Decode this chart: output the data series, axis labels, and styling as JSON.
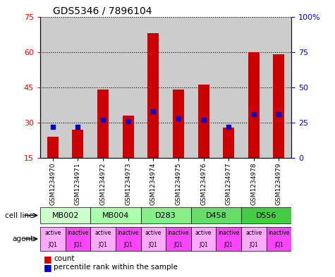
{
  "title": "GDS5346 / 7896104",
  "samples": [
    "GSM1234970",
    "GSM1234971",
    "GSM1234972",
    "GSM1234973",
    "GSM1234974",
    "GSM1234975",
    "GSM1234976",
    "GSM1234977",
    "GSM1234978",
    "GSM1234979"
  ],
  "counts": [
    24,
    27,
    44,
    33,
    68,
    44,
    46,
    28,
    60,
    59
  ],
  "percentile_ranks": [
    22,
    22,
    27,
    26,
    33,
    28,
    27,
    22,
    31,
    31
  ],
  "ylim_left": [
    15,
    75
  ],
  "ylim_right": [
    0,
    100
  ],
  "yticks_left": [
    15,
    30,
    45,
    60,
    75
  ],
  "yticks_right": [
    0,
    25,
    50,
    75,
    100
  ],
  "ytick_labels_left": [
    "15",
    "30",
    "45",
    "60",
    "75"
  ],
  "ytick_labels_right": [
    "0",
    "25",
    "50",
    "75",
    "100%"
  ],
  "cell_lines": [
    {
      "label": "MB002",
      "cols": [
        0,
        1
      ],
      "color": "#ccffcc"
    },
    {
      "label": "MB004",
      "cols": [
        2,
        3
      ],
      "color": "#aaffaa"
    },
    {
      "label": "D283",
      "cols": [
        4,
        5
      ],
      "color": "#88ee88"
    },
    {
      "label": "D458",
      "cols": [
        6,
        7
      ],
      "color": "#66dd66"
    },
    {
      "label": "D556",
      "cols": [
        8,
        9
      ],
      "color": "#44cc44"
    }
  ],
  "agents": [
    "active",
    "inactive",
    "active",
    "inactive",
    "active",
    "inactive",
    "active",
    "inactive",
    "active",
    "inactive"
  ],
  "agent_active_color": "#ffaaff",
  "agent_inactive_color": "#ff44ff",
  "bar_color": "#cc0000",
  "percentile_color": "#0000cc",
  "bar_width": 0.45,
  "sample_bg_color": "#cccccc",
  "bg_white": "#ffffff"
}
